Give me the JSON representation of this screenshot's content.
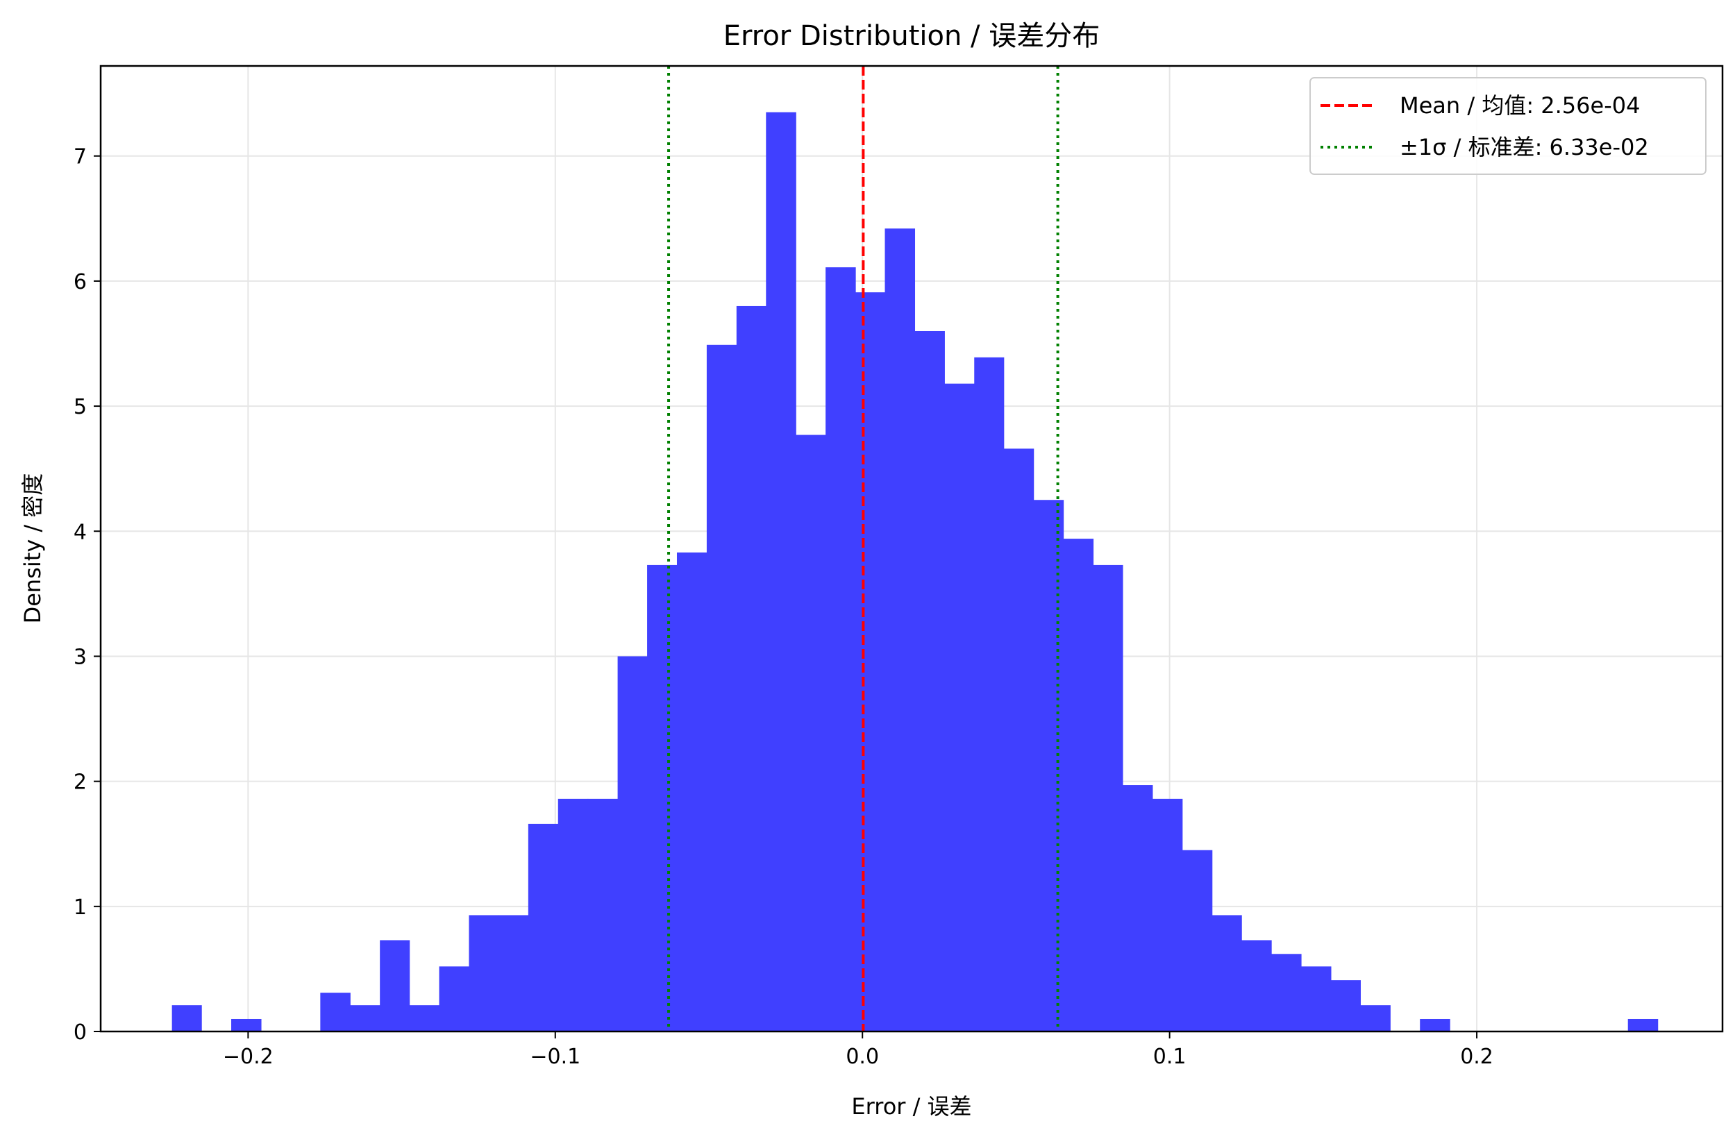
{
  "chart_data": {
    "type": "bar",
    "title": "Error Distribution / 误差分布",
    "xlabel": "Error / 误差",
    "ylabel": "Density / 密度",
    "xlim": [
      -0.248,
      0.28
    ],
    "ylim": [
      0,
      7.72
    ],
    "xticks": [
      -0.2,
      -0.1,
      0.0,
      0.1,
      0.2
    ],
    "xtick_labels": [
      "−0.2",
      "−0.1",
      "0.0",
      "0.1",
      "0.2"
    ],
    "yticks": [
      0,
      1,
      2,
      3,
      4,
      5,
      6,
      7
    ],
    "ytick_labels": [
      "0",
      "1",
      "2",
      "3",
      "4",
      "5",
      "6",
      "7"
    ],
    "grid": true,
    "legend_position": "top-right",
    "bar_color": "#4040ff",
    "bins": [
      {
        "x0": -0.2248,
        "x1": -0.2152,
        "y": 0.21
      },
      {
        "x0": -0.2055,
        "x1": -0.1958,
        "y": 0.1
      },
      {
        "x0": -0.1765,
        "x1": -0.1668,
        "y": 0.31
      },
      {
        "x0": -0.1668,
        "x1": -0.1571,
        "y": 0.21
      },
      {
        "x0": -0.1571,
        "x1": -0.1475,
        "y": 0.73
      },
      {
        "x0": -0.1475,
        "x1": -0.1378,
        "y": 0.21
      },
      {
        "x0": -0.1378,
        "x1": -0.1281,
        "y": 0.52
      },
      {
        "x0": -0.1281,
        "x1": -0.1184,
        "y": 0.93
      },
      {
        "x0": -0.1184,
        "x1": -0.1088,
        "y": 0.93
      },
      {
        "x0": -0.1088,
        "x1": -0.0991,
        "y": 1.66
      },
      {
        "x0": -0.0991,
        "x1": -0.0894,
        "y": 1.86
      },
      {
        "x0": -0.0894,
        "x1": -0.0797,
        "y": 1.86
      },
      {
        "x0": -0.0797,
        "x1": -0.0701,
        "y": 3.0
      },
      {
        "x0": -0.0701,
        "x1": -0.0604,
        "y": 3.73
      },
      {
        "x0": -0.0604,
        "x1": -0.0507,
        "y": 3.83
      },
      {
        "x0": -0.0507,
        "x1": -0.041,
        "y": 5.49
      },
      {
        "x0": -0.041,
        "x1": -0.0314,
        "y": 5.8
      },
      {
        "x0": -0.0314,
        "x1": -0.0217,
        "y": 7.35
      },
      {
        "x0": -0.0217,
        "x1": -0.012,
        "y": 4.77
      },
      {
        "x0": -0.012,
        "x1": -0.0023,
        "y": 6.11
      },
      {
        "x0": -0.0023,
        "x1": 0.0073,
        "y": 5.91
      },
      {
        "x0": 0.0073,
        "x1": 0.017,
        "y": 6.42
      },
      {
        "x0": 0.017,
        "x1": 0.0267,
        "y": 5.6
      },
      {
        "x0": 0.0267,
        "x1": 0.0364,
        "y": 5.18
      },
      {
        "x0": 0.0364,
        "x1": 0.046,
        "y": 5.39
      },
      {
        "x0": 0.046,
        "x1": 0.0557,
        "y": 4.66
      },
      {
        "x0": 0.0557,
        "x1": 0.0654,
        "y": 4.25
      },
      {
        "x0": 0.0654,
        "x1": 0.0751,
        "y": 3.94
      },
      {
        "x0": 0.0751,
        "x1": 0.0847,
        "y": 3.73
      },
      {
        "x0": 0.0847,
        "x1": 0.0944,
        "y": 1.97
      },
      {
        "x0": 0.0944,
        "x1": 0.1041,
        "y": 1.86
      },
      {
        "x0": 0.1041,
        "x1": 0.1138,
        "y": 1.45
      },
      {
        "x0": 0.1138,
        "x1": 0.1234,
        "y": 0.93
      },
      {
        "x0": 0.1234,
        "x1": 0.1331,
        "y": 0.73
      },
      {
        "x0": 0.1331,
        "x1": 0.1428,
        "y": 0.62
      },
      {
        "x0": 0.1428,
        "x1": 0.1525,
        "y": 0.52
      },
      {
        "x0": 0.1525,
        "x1": 0.1621,
        "y": 0.41
      },
      {
        "x0": 0.1621,
        "x1": 0.1718,
        "y": 0.21
      },
      {
        "x0": 0.1815,
        "x1": 0.1912,
        "y": 0.1
      },
      {
        "x0": 0.2492,
        "x1": 0.2589,
        "y": 0.1
      }
    ],
    "mean_line": {
      "x": 0.000256,
      "color": "#ff0000",
      "label": "Mean / 均值: 2.56e-04"
    },
    "sigma_lines": {
      "x": [
        -0.0631,
        0.0636
      ],
      "color": "#008000",
      "label": "±1σ / 标准差: 6.33e-02"
    }
  }
}
